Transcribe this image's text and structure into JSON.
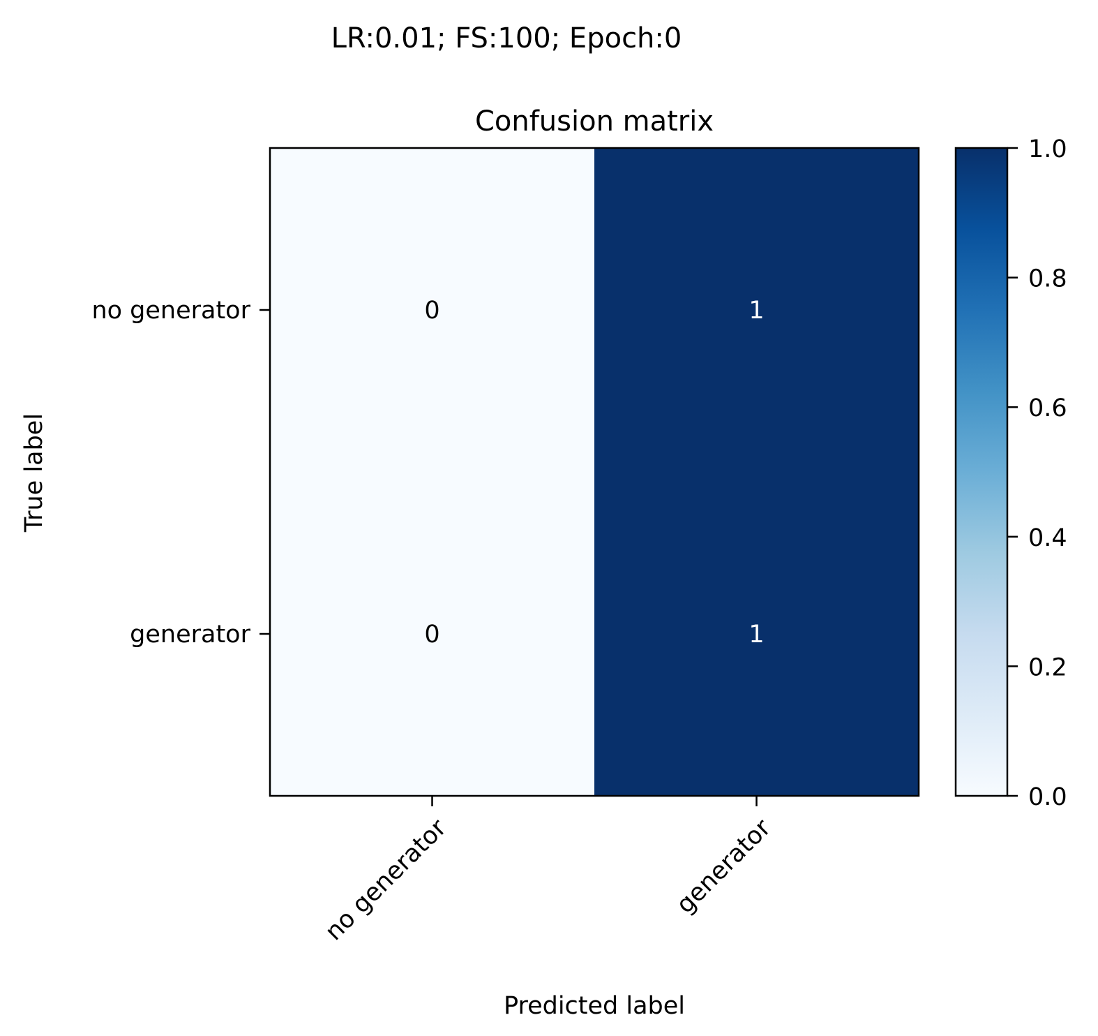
{
  "chart_data": {
    "type": "heatmap",
    "suptitle": "LR:0.01;  FS:100;   Epoch:0",
    "title": "Confusion matrix",
    "xlabel": "Predicted label",
    "ylabel": "True label",
    "x_categories": [
      "no generator",
      "generator"
    ],
    "y_categories": [
      "no generator",
      "generator"
    ],
    "matrix": [
      [
        0,
        1
      ],
      [
        0,
        1
      ]
    ],
    "cell_labels": [
      [
        "0",
        "1"
      ],
      [
        "0",
        "1"
      ]
    ],
    "colorbar": {
      "colormap": "Blues",
      "low_color": "#f7fbff",
      "high_color": "#08306b",
      "range": [
        0.0,
        1.0
      ],
      "ticks": [
        0.0,
        0.2,
        0.4,
        0.6,
        0.8,
        1.0
      ],
      "tick_labels": [
        "0.0",
        "0.2",
        "0.4",
        "0.6",
        "0.8",
        "1.0"
      ]
    },
    "grid": false
  }
}
